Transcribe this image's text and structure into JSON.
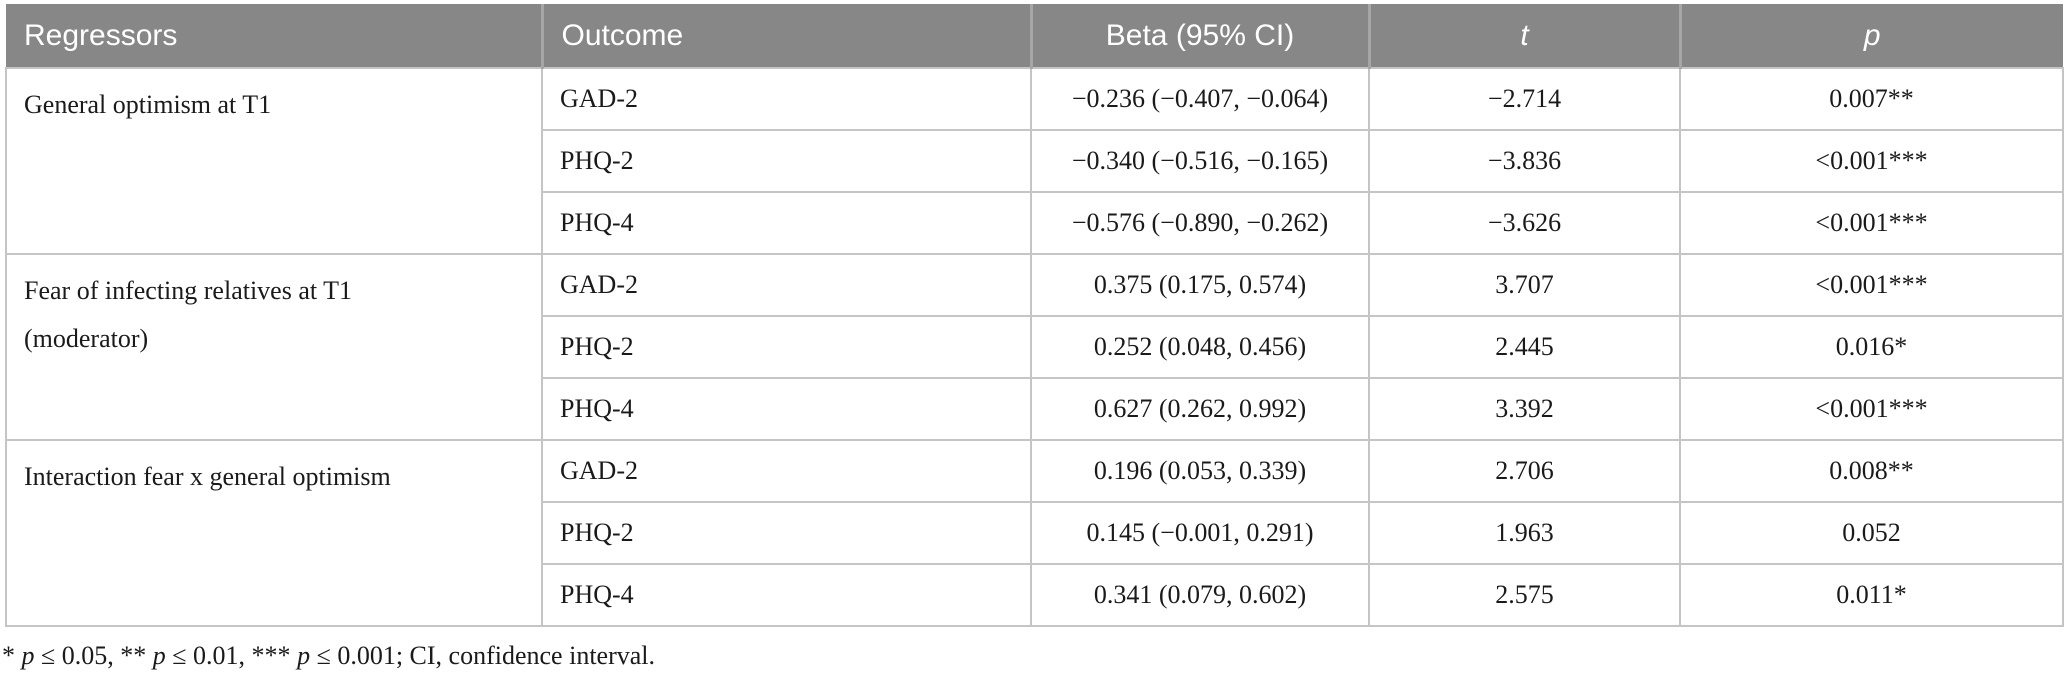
{
  "header": {
    "columns": {
      "regressors": "Regressors",
      "outcome": "Outcome",
      "beta": "Beta (95% CI)",
      "t": "t",
      "p": "p"
    }
  },
  "table": {
    "groups": [
      {
        "regressor": "General optimism at T1",
        "regressor_line2": "",
        "rows": [
          {
            "outcome": "GAD-2",
            "beta": "−0.236 (−0.407, −0.064)",
            "t": "−2.714",
            "p": "0.007**"
          },
          {
            "outcome": "PHQ-2",
            "beta": "−0.340 (−0.516, −0.165)",
            "t": "−3.836",
            "p": "<0.001***"
          },
          {
            "outcome": "PHQ-4",
            "beta": "−0.576 (−0.890, −0.262)",
            "t": "−3.626",
            "p": "<0.001***"
          }
        ]
      },
      {
        "regressor": "Fear of infecting relatives at T1",
        "regressor_line2": "(moderator)",
        "rows": [
          {
            "outcome": "GAD-2",
            "beta": "0.375 (0.175, 0.574)",
            "t": "3.707",
            "p": "<0.001***"
          },
          {
            "outcome": "PHQ-2",
            "beta": "0.252 (0.048, 0.456)",
            "t": "2.445",
            "p": "0.016*"
          },
          {
            "outcome": "PHQ-4",
            "beta": "0.627 (0.262, 0.992)",
            "t": "3.392",
            "p": "<0.001***"
          }
        ]
      },
      {
        "regressor": "Interaction fear x general optimism",
        "regressor_line2": "",
        "rows": [
          {
            "outcome": "GAD-2",
            "beta": "0.196 (0.053, 0.339)",
            "t": "2.706",
            "p": "0.008**"
          },
          {
            "outcome": "PHQ-2",
            "beta": "0.145 (−0.001, 0.291)",
            "t": "1.963",
            "p": "0.052"
          },
          {
            "outcome": "PHQ-4",
            "beta": "0.341 (0.079, 0.602)",
            "t": "2.575",
            "p": "0.011*"
          }
        ]
      }
    ]
  },
  "footnote": {
    "parts": [
      {
        "t": "* "
      },
      {
        "t": "p"
      },
      {
        "t": " ≤ 0.05, ** "
      },
      {
        "t": "p"
      },
      {
        "t": " ≤ 0.01, *** "
      },
      {
        "t": "p"
      },
      {
        "t": " ≤ 0.001; CI, confidence interval."
      }
    ]
  },
  "colors": {
    "header_bg": "#878787",
    "header_divider": "#a6a6a6",
    "header_text": "#ffffff",
    "border": "#c5c5c5",
    "body_text": "#1a1a1a"
  }
}
